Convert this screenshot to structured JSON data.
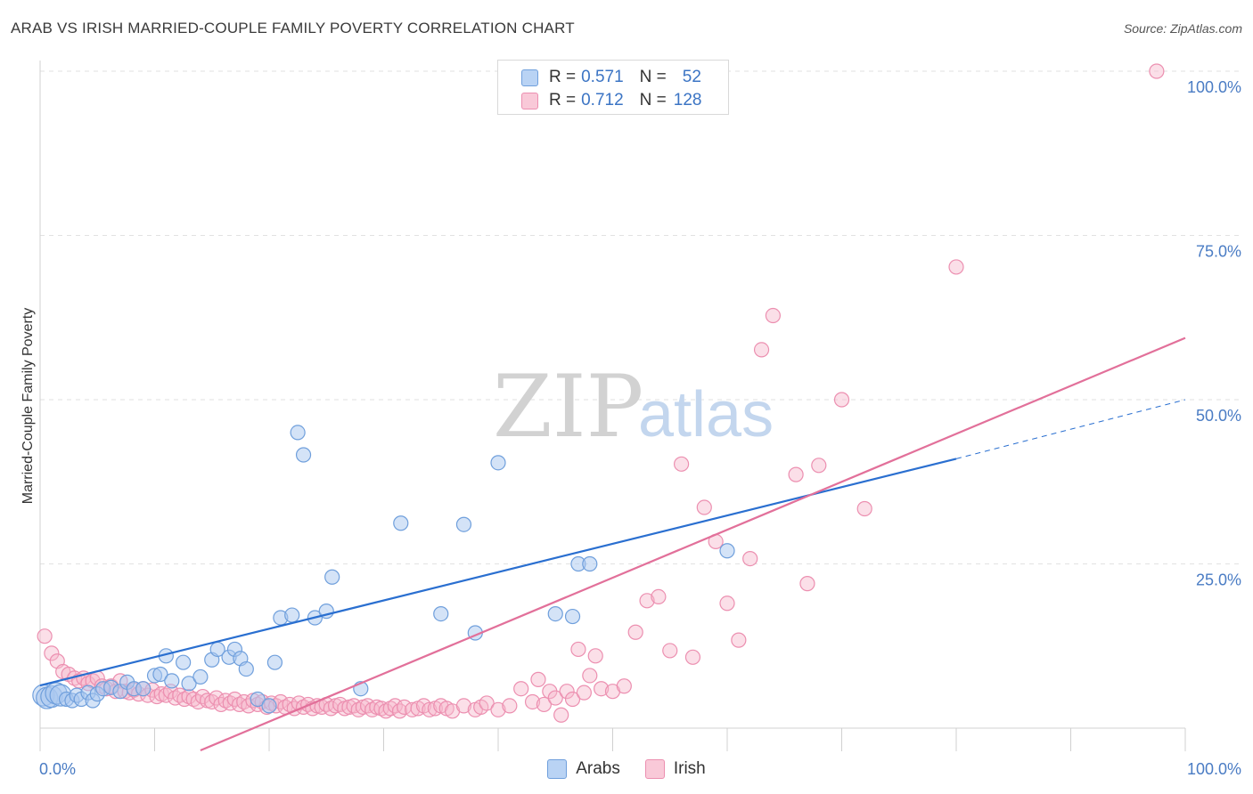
{
  "header": {
    "title": "ARAB VS IRISH MARRIED-COUPLE FAMILY POVERTY CORRELATION CHART",
    "source": "Source: ZipAtlas.com"
  },
  "watermark": {
    "zip": "ZIP",
    "atlas": "atlas"
  },
  "legend_top": {
    "rows": [
      {
        "r_label": "R =",
        "r_value": "0.571",
        "n_label": "N =",
        "n_value": "52"
      },
      {
        "r_label": "R =",
        "r_value": "0.712",
        "n_label": "N =",
        "n_value": "128"
      }
    ]
  },
  "legend_bottom": {
    "arabs": "Arabs",
    "irish": "Irish"
  },
  "colors": {
    "arab_fill": "#a9c8f0",
    "arab_stroke": "#6f9fdc",
    "arab_line": "#2a6fd0",
    "irish_fill": "#f6b7cb",
    "irish_stroke": "#ec8fb0",
    "irish_line": "#e2709a",
    "tick": "#4a7cc4",
    "grid": "#e2e2e2"
  },
  "chart_data": {
    "type": "scatter",
    "title": "ARAB VS IRISH MARRIED-COUPLE FAMILY POVERTY CORRELATION CHART",
    "xlabel": "",
    "ylabel": "Married-Couple Family Poverty",
    "xlim": [
      0,
      100
    ],
    "ylim": [
      0,
      100
    ],
    "x_tick_labels": [
      "0.0%",
      "100.0%"
    ],
    "y_ticks": [
      25,
      50,
      75,
      100
    ],
    "y_tick_labels": [
      "25.0%",
      "50.0%",
      "75.0%",
      "100.0%"
    ],
    "legend_position": "top-center",
    "series": [
      {
        "name": "Arabs",
        "r": 0.571,
        "n": 52,
        "trend": {
          "x0": 0,
          "y0": 6.5,
          "x1": 80,
          "y1": 41,
          "dash_to_x": 100,
          "dash_to_y": 50
        },
        "points": [
          [
            0.3,
            5.0
          ],
          [
            0.6,
            4.6
          ],
          [
            1.0,
            4.8
          ],
          [
            1.4,
            5.3
          ],
          [
            1.8,
            5.0
          ],
          [
            2.3,
            4.4
          ],
          [
            2.8,
            4.2
          ],
          [
            3.2,
            5.0
          ],
          [
            3.6,
            4.4
          ],
          [
            4.2,
            5.4
          ],
          [
            4.6,
            4.2
          ],
          [
            5.0,
            5.2
          ],
          [
            5.5,
            6.0
          ],
          [
            6.2,
            6.2
          ],
          [
            7.0,
            5.6
          ],
          [
            7.6,
            7.0
          ],
          [
            8.2,
            6.0
          ],
          [
            9.0,
            6.0
          ],
          [
            10.0,
            8.0
          ],
          [
            10.5,
            8.2
          ],
          [
            11.0,
            11.0
          ],
          [
            11.5,
            7.2
          ],
          [
            12.5,
            10.0
          ],
          [
            13.0,
            6.8
          ],
          [
            14.0,
            7.8
          ],
          [
            15.0,
            10.4
          ],
          [
            15.5,
            12.0
          ],
          [
            16.5,
            10.8
          ],
          [
            17.0,
            12.0
          ],
          [
            17.5,
            10.6
          ],
          [
            18.0,
            9.0
          ],
          [
            19.0,
            4.4
          ],
          [
            20.0,
            3.4
          ],
          [
            20.5,
            10.0
          ],
          [
            21.0,
            16.8
          ],
          [
            22.0,
            17.2
          ],
          [
            22.5,
            45.0
          ],
          [
            23.0,
            41.6
          ],
          [
            24.0,
            16.8
          ],
          [
            25.0,
            17.8
          ],
          [
            25.5,
            23.0
          ],
          [
            28.0,
            6.0
          ],
          [
            31.5,
            31.2
          ],
          [
            35.0,
            17.4
          ],
          [
            37.0,
            31.0
          ],
          [
            38.0,
            14.5
          ],
          [
            40.0,
            40.4
          ],
          [
            45.0,
            17.4
          ],
          [
            46.5,
            17.0
          ],
          [
            47.0,
            25.0
          ],
          [
            48.0,
            25.0
          ],
          [
            60.0,
            27.0
          ]
        ]
      },
      {
        "name": "Irish",
        "r": 0.712,
        "n": 128,
        "trend": {
          "x0": 14,
          "y0": 0,
          "x1": 100,
          "y1": 59.4
        },
        "points": [
          [
            0.4,
            14.0
          ],
          [
            1.0,
            11.4
          ],
          [
            1.5,
            10.2
          ],
          [
            2.0,
            8.6
          ],
          [
            2.5,
            8.2
          ],
          [
            3.0,
            7.6
          ],
          [
            3.4,
            7.2
          ],
          [
            3.8,
            7.6
          ],
          [
            4.2,
            6.8
          ],
          [
            4.6,
            7.2
          ],
          [
            5.0,
            7.6
          ],
          [
            5.4,
            6.4
          ],
          [
            5.8,
            6.0
          ],
          [
            6.2,
            6.4
          ],
          [
            6.6,
            5.6
          ],
          [
            7.0,
            7.2
          ],
          [
            7.4,
            5.6
          ],
          [
            7.8,
            5.4
          ],
          [
            8.2,
            5.8
          ],
          [
            8.6,
            5.2
          ],
          [
            9.0,
            6.0
          ],
          [
            9.4,
            5.0
          ],
          [
            9.8,
            5.8
          ],
          [
            10.2,
            4.8
          ],
          [
            10.6,
            5.2
          ],
          [
            11.0,
            5.0
          ],
          [
            11.4,
            5.6
          ],
          [
            11.8,
            4.6
          ],
          [
            12.2,
            5.0
          ],
          [
            12.6,
            4.4
          ],
          [
            13.0,
            4.8
          ],
          [
            13.4,
            4.4
          ],
          [
            13.8,
            4.0
          ],
          [
            14.2,
            4.8
          ],
          [
            14.6,
            4.2
          ],
          [
            15.0,
            4.0
          ],
          [
            15.4,
            4.6
          ],
          [
            15.8,
            3.6
          ],
          [
            16.2,
            4.2
          ],
          [
            16.6,
            3.8
          ],
          [
            17.0,
            4.4
          ],
          [
            17.4,
            3.6
          ],
          [
            17.8,
            4.0
          ],
          [
            18.2,
            3.4
          ],
          [
            18.6,
            4.2
          ],
          [
            19.0,
            3.6
          ],
          [
            19.4,
            4.0
          ],
          [
            19.8,
            3.2
          ],
          [
            20.2,
            3.8
          ],
          [
            20.6,
            3.4
          ],
          [
            21.0,
            4.0
          ],
          [
            21.4,
            3.2
          ],
          [
            21.8,
            3.6
          ],
          [
            22.2,
            3.0
          ],
          [
            22.6,
            3.8
          ],
          [
            23.0,
            3.2
          ],
          [
            23.4,
            3.6
          ],
          [
            23.8,
            3.0
          ],
          [
            24.2,
            3.4
          ],
          [
            24.6,
            3.2
          ],
          [
            25.0,
            3.6
          ],
          [
            25.4,
            3.0
          ],
          [
            25.8,
            3.4
          ],
          [
            26.2,
            3.6
          ],
          [
            26.6,
            3.0
          ],
          [
            27.0,
            3.2
          ],
          [
            27.4,
            3.4
          ],
          [
            27.8,
            2.8
          ],
          [
            28.2,
            3.2
          ],
          [
            28.6,
            3.4
          ],
          [
            29.0,
            2.8
          ],
          [
            29.4,
            3.2
          ],
          [
            29.8,
            3.0
          ],
          [
            30.2,
            2.6
          ],
          [
            30.6,
            3.0
          ],
          [
            31.0,
            3.4
          ],
          [
            31.4,
            2.6
          ],
          [
            31.8,
            3.2
          ],
          [
            32.5,
            2.8
          ],
          [
            33.0,
            3.0
          ],
          [
            33.5,
            3.4
          ],
          [
            34.0,
            2.8
          ],
          [
            34.5,
            3.0
          ],
          [
            35.0,
            3.4
          ],
          [
            35.5,
            3.0
          ],
          [
            36.0,
            2.6
          ],
          [
            37.0,
            3.4
          ],
          [
            38.0,
            2.8
          ],
          [
            38.5,
            3.2
          ],
          [
            39.0,
            3.8
          ],
          [
            40.0,
            2.8
          ],
          [
            41.0,
            3.4
          ],
          [
            42.0,
            6.0
          ],
          [
            43.0,
            4.0
          ],
          [
            43.5,
            7.4
          ],
          [
            44.0,
            3.6
          ],
          [
            44.5,
            5.6
          ],
          [
            45.0,
            4.6
          ],
          [
            45.5,
            2.0
          ],
          [
            46.0,
            5.6
          ],
          [
            46.5,
            4.4
          ],
          [
            47.0,
            12.0
          ],
          [
            47.5,
            5.4
          ],
          [
            48.0,
            8.0
          ],
          [
            48.5,
            11.0
          ],
          [
            49.0,
            6.0
          ],
          [
            50.0,
            5.6
          ],
          [
            51.0,
            6.4
          ],
          [
            52.0,
            14.6
          ],
          [
            53.0,
            19.4
          ],
          [
            54.0,
            20.0
          ],
          [
            55.0,
            11.8
          ],
          [
            56.0,
            40.2
          ],
          [
            57.0,
            10.8
          ],
          [
            58.0,
            33.6
          ],
          [
            59.0,
            28.4
          ],
          [
            60.0,
            19.0
          ],
          [
            61.0,
            13.4
          ],
          [
            62.0,
            25.8
          ],
          [
            63.0,
            57.6
          ],
          [
            64.0,
            62.8
          ],
          [
            66.0,
            38.6
          ],
          [
            67.0,
            22.0
          ],
          [
            68.0,
            40.0
          ],
          [
            70.0,
            50.0
          ],
          [
            72.0,
            33.4
          ],
          [
            80.0,
            70.2
          ],
          [
            97.5,
            100.0
          ]
        ]
      }
    ]
  }
}
